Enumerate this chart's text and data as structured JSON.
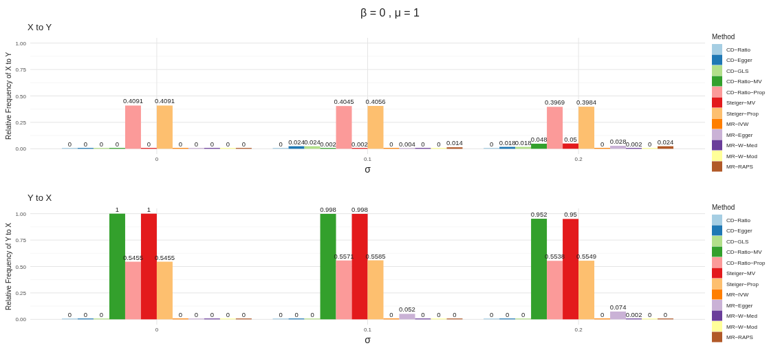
{
  "chart_data": [
    {
      "type": "bar",
      "title": "X to Y",
      "annotations": [
        "β = 0 ,  μ = 1"
      ],
      "xlabel": "σ",
      "ylabel": "Relative Frequency of X to Y",
      "legend_title": "Method",
      "legend": "right",
      "grid": true,
      "data_labels": true,
      "categories": [
        "0",
        "0.1",
        "0.2"
      ],
      "ylim": [
        -0.05,
        1.05
      ],
      "yticks": [
        {
          "value": 0,
          "label": "0.00"
        },
        {
          "value": 0.25,
          "label": "0.25"
        },
        {
          "value": 0.5,
          "label": "0.50"
        },
        {
          "value": 0.75,
          "label": "0.75"
        },
        {
          "value": 1,
          "label": "1.00"
        }
      ],
      "series": [
        {
          "name": "CD−Ratio",
          "color": "#a6cee3",
          "values": [
            0,
            0,
            0
          ]
        },
        {
          "name": "CD−Egger",
          "color": "#1f78b4",
          "values": [
            0,
            0.024,
            0.018
          ]
        },
        {
          "name": "CD−GLS",
          "color": "#b2df8a",
          "values": [
            0,
            0.024,
            0.018
          ]
        },
        {
          "name": "CD−Ratio−MV",
          "color": "#33a02c",
          "values": [
            0,
            0.002,
            0.048
          ]
        },
        {
          "name": "CD−Ratio−Prop",
          "color": "#fb9a99",
          "values": [
            0.4091,
            0.4045,
            0.3969
          ]
        },
        {
          "name": "Steiger−MV",
          "color": "#e31a1c",
          "values": [
            0,
            0.002,
            0.05
          ]
        },
        {
          "name": "Steiger−Prop",
          "color": "#fdbf6f",
          "values": [
            0.4091,
            0.4056,
            0.3984
          ]
        },
        {
          "name": "MR−IVW",
          "color": "#ff7f00",
          "values": [
            0,
            0,
            0
          ]
        },
        {
          "name": "MR−Egger",
          "color": "#cab2d6",
          "values": [
            0,
            0.004,
            0.028
          ]
        },
        {
          "name": "MR−W−Med",
          "color": "#6a3d9a",
          "values": [
            0,
            0,
            0.002
          ]
        },
        {
          "name": "MR−W−Mod",
          "color": "#ffff99",
          "values": [
            0,
            0,
            0
          ]
        },
        {
          "name": "MR−RAPS",
          "color": "#b15928",
          "values": [
            0,
            0.014,
            0.024
          ]
        }
      ]
    },
    {
      "type": "bar",
      "title": "Y to X",
      "xlabel": "σ",
      "ylabel": "Relative Frequency of Y to X",
      "legend_title": "Method",
      "legend": "right",
      "grid": true,
      "data_labels": true,
      "categories": [
        "0",
        "0.1",
        "0.2"
      ],
      "ylim": [
        -0.05,
        1.05
      ],
      "yticks": [
        {
          "value": 0,
          "label": "0.00"
        },
        {
          "value": 0.25,
          "label": "0.25"
        },
        {
          "value": 0.5,
          "label": "0.50"
        },
        {
          "value": 0.75,
          "label": "0.75"
        },
        {
          "value": 1,
          "label": "1.00"
        }
      ],
      "series": [
        {
          "name": "CD−Ratio",
          "color": "#a6cee3",
          "values": [
            0,
            0,
            0
          ]
        },
        {
          "name": "CD−Egger",
          "color": "#1f78b4",
          "values": [
            0,
            0,
            0
          ]
        },
        {
          "name": "CD−GLS",
          "color": "#b2df8a",
          "values": [
            0,
            0,
            0
          ]
        },
        {
          "name": "CD−Ratio−MV",
          "color": "#33a02c",
          "values": [
            1,
            0.998,
            0.952
          ]
        },
        {
          "name": "CD−Ratio−Prop",
          "color": "#fb9a99",
          "values": [
            0.5455,
            0.5571,
            0.5538
          ]
        },
        {
          "name": "Steiger−MV",
          "color": "#e31a1c",
          "values": [
            1,
            0.998,
            0.95
          ]
        },
        {
          "name": "Steiger−Prop",
          "color": "#fdbf6f",
          "values": [
            0.5455,
            0.5585,
            0.5549
          ]
        },
        {
          "name": "MR−IVW",
          "color": "#ff7f00",
          "values": [
            0,
            0,
            0
          ]
        },
        {
          "name": "MR−Egger",
          "color": "#cab2d6",
          "values": [
            0,
            0.052,
            0.074
          ]
        },
        {
          "name": "MR−W−Med",
          "color": "#6a3d9a",
          "values": [
            0,
            0,
            0.002
          ]
        },
        {
          "name": "MR−W−Mod",
          "color": "#ffff99",
          "values": [
            0,
            0,
            0
          ]
        },
        {
          "name": "MR−RAPS",
          "color": "#b15928",
          "values": [
            0,
            0,
            0
          ]
        }
      ]
    }
  ]
}
